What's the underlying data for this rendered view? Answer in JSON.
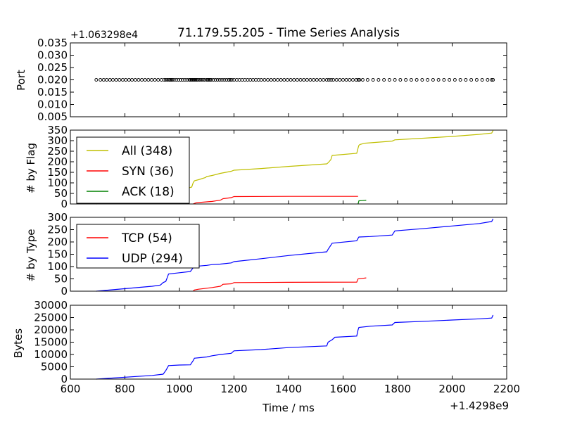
{
  "chart_data": [
    {
      "type": "scatter",
      "title": "71.179.55.205 - Time Series Analysis",
      "ylabel": "Port",
      "offset_label": "+1.063298e4",
      "ylim": [
        0.005,
        0.035
      ],
      "yticks": [
        0.005,
        0.01,
        0.015,
        0.02,
        0.025,
        0.03,
        0.035
      ],
      "ytick_labels": [
        "0.005",
        "0.010",
        "0.015",
        "0.020",
        "0.025",
        "0.030",
        "0.035"
      ],
      "series": [
        {
          "color": "#000000",
          "marker": "open-circle",
          "y": 0.02,
          "x": [
            695,
            710,
            722,
            733,
            745,
            756,
            768,
            780,
            792,
            803,
            815,
            826,
            838,
            850,
            862,
            874,
            886,
            898,
            910,
            922,
            934,
            944,
            950,
            956,
            962,
            966,
            970,
            974,
            980,
            988,
            996,
            1004,
            1012,
            1020,
            1028,
            1036,
            1040,
            1044,
            1048,
            1052,
            1056,
            1060,
            1064,
            1068,
            1074,
            1080,
            1086,
            1092,
            1100,
            1104,
            1108,
            1112,
            1116,
            1124,
            1132,
            1140,
            1148,
            1156,
            1164,
            1172,
            1180,
            1186,
            1192,
            1200,
            1210,
            1220,
            1230,
            1240,
            1250,
            1260,
            1270,
            1280,
            1290,
            1300,
            1312,
            1324,
            1336,
            1348,
            1360,
            1372,
            1384,
            1396,
            1408,
            1420,
            1432,
            1444,
            1456,
            1468,
            1480,
            1492,
            1504,
            1516,
            1528,
            1540,
            1548,
            1556,
            1564,
            1576,
            1588,
            1600,
            1612,
            1624,
            1636,
            1648,
            1656,
            1660,
            1672,
            1690,
            1710,
            1730,
            1750,
            1770,
            1790,
            1810,
            1830,
            1850,
            1870,
            1890,
            1910,
            1930,
            1950,
            1970,
            1990,
            2010,
            2030,
            2050,
            2070,
            2090,
            2110,
            2130,
            2145,
            2150
          ]
        }
      ]
    },
    {
      "type": "line",
      "ylabel": "# by Flag",
      "ylim": [
        0,
        350
      ],
      "yticks": [
        0,
        50,
        100,
        150,
        200,
        250,
        300,
        350
      ],
      "legend": "top-left",
      "series": [
        {
          "name": "All (348)",
          "color": "#bfbf00",
          "x": [
            695,
            900,
            1000,
            1045,
            1050,
            1055,
            1070,
            1095,
            1100,
            1120,
            1150,
            1190,
            1200,
            1300,
            1400,
            1540,
            1545,
            1555,
            1560,
            1650,
            1655,
            1658,
            1662,
            1680,
            1780,
            1790,
            1900,
            2000,
            2100,
            2145,
            2150
          ],
          "y": [
            0,
            30,
            65,
            80,
            100,
            110,
            115,
            125,
            130,
            135,
            145,
            155,
            160,
            168,
            178,
            190,
            195,
            210,
            230,
            240,
            265,
            278,
            282,
            288,
            298,
            304,
            312,
            320,
            330,
            336,
            348
          ]
        },
        {
          "name": "SYN (36)",
          "color": "#ff0000",
          "x": [
            1050,
            1060,
            1080,
            1100,
            1120,
            1150,
            1160,
            1190,
            1200,
            1400,
            1550,
            1650,
            1655
          ],
          "y": [
            0,
            5,
            8,
            10,
            12,
            18,
            25,
            30,
            35,
            36,
            36,
            36,
            36
          ]
        },
        {
          "name": "ACK (18)",
          "color": "#008000",
          "x": [
            1655,
            1658,
            1670,
            1680,
            1685
          ],
          "y": [
            0,
            15,
            16,
            17,
            18
          ]
        }
      ]
    },
    {
      "type": "line",
      "ylabel": "# by Type",
      "ylim": [
        0,
        300
      ],
      "yticks": [
        0,
        50,
        100,
        150,
        200,
        250,
        300
      ],
      "legend": "top-left",
      "series": [
        {
          "name": "TCP (54)",
          "color": "#ff0000",
          "x": [
            1050,
            1055,
            1070,
            1100,
            1120,
            1150,
            1160,
            1190,
            1200,
            1400,
            1650,
            1655,
            1670,
            1685
          ],
          "y": [
            0,
            5,
            8,
            12,
            15,
            20,
            28,
            30,
            35,
            36,
            37,
            50,
            52,
            54
          ]
        },
        {
          "name": "UDP (294)",
          "color": "#0000ff",
          "x": [
            695,
            900,
            930,
            940,
            950,
            955,
            960,
            1000,
            1040,
            1050,
            1055,
            1070,
            1100,
            1120,
            1150,
            1190,
            1200,
            1300,
            1400,
            1540,
            1545,
            1560,
            1650,
            1655,
            1658,
            1700,
            1780,
            1790,
            1900,
            2000,
            2100,
            2145,
            2150
          ],
          "y": [
            0,
            20,
            25,
            35,
            40,
            55,
            70,
            75,
            80,
            95,
            100,
            102,
            105,
            108,
            110,
            115,
            120,
            132,
            145,
            160,
            170,
            195,
            205,
            215,
            220,
            222,
            228,
            245,
            255,
            265,
            275,
            283,
            294
          ]
        }
      ]
    },
    {
      "type": "line",
      "ylabel": "Bytes",
      "xlabel": "Time / ms",
      "x_offset_label": "+1.4298e9",
      "xlim": [
        600,
        2200
      ],
      "ylim": [
        0,
        30000
      ],
      "xticks": [
        600,
        800,
        1000,
        1200,
        1400,
        1600,
        1800,
        2000,
        2200
      ],
      "xtick_labels": [
        "600",
        "800",
        "1000",
        "1200",
        "1400",
        "1600",
        "1800",
        "2000",
        "2200"
      ],
      "yticks": [
        0,
        5000,
        10000,
        15000,
        20000,
        25000,
        30000
      ],
      "series": [
        {
          "color": "#0000ff",
          "x": [
            695,
            900,
            940,
            950,
            955,
            960,
            1000,
            1040,
            1050,
            1055,
            1100,
            1120,
            1150,
            1190,
            1200,
            1300,
            1400,
            1540,
            1545,
            1560,
            1570,
            1650,
            1655,
            1658,
            1700,
            1780,
            1790,
            1900,
            2000,
            2100,
            2145,
            2150
          ],
          "y": [
            0,
            1500,
            2000,
            3500,
            4500,
            5500,
            5700,
            5800,
            7500,
            8500,
            9000,
            9500,
            10000,
            10500,
            11500,
            12000,
            12800,
            13500,
            15000,
            16000,
            17000,
            17500,
            20000,
            21000,
            21500,
            22000,
            23000,
            23500,
            24000,
            24500,
            24800,
            26000
          ]
        }
      ]
    }
  ]
}
